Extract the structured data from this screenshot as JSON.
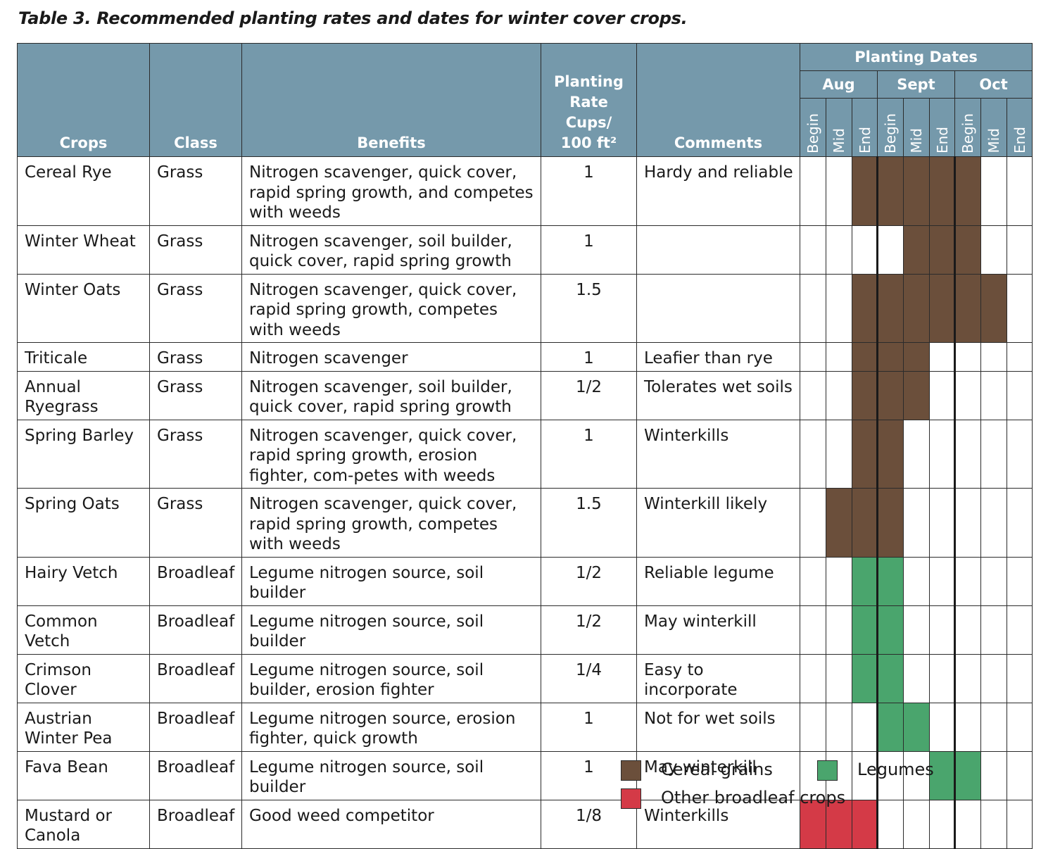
{
  "caption": "Table 3. Recommended planting rates and dates for winter cover crops.",
  "headers": {
    "crops": "Crops",
    "class": "Class",
    "benefits": "Benefits",
    "rate_lines": [
      "Planting",
      "Rate",
      "Cups/",
      "100 ft²"
    ],
    "comments": "Comments",
    "planting_dates": "Planting Dates",
    "months": [
      "Aug",
      "Sept",
      "Oct"
    ],
    "subperiods": [
      "Begin",
      "Mid",
      "End",
      "Begin",
      "Mid",
      "End",
      "Begin",
      "Mid",
      "End"
    ]
  },
  "rows": [
    {
      "crop": "Cereal Rye",
      "class": "Grass",
      "benefits": "Nitrogen scavenger, quick cover, rapid spring growth, and competes with weeds",
      "rate": "1",
      "comments": "Hardy and reliable",
      "periods": [
        "",
        "",
        "c",
        "c",
        "c",
        "c",
        "c",
        "",
        ""
      ],
      "height": 96
    },
    {
      "crop": "Winter Wheat",
      "class": "Grass",
      "benefits": "Nitrogen scavenger, soil builder, quick cover, rapid spring growth",
      "rate": "1",
      "comments": "",
      "periods": [
        "",
        "",
        "",
        "",
        "c",
        "c",
        "c",
        "",
        ""
      ],
      "height": 68
    },
    {
      "crop": "Winter Oats",
      "class": "Grass",
      "benefits": "Nitrogen scavenger, quick cover, rapid spring growth, competes with weeds",
      "rate": "1.5",
      "comments": "",
      "periods": [
        "",
        "",
        "c",
        "c",
        "c",
        "c",
        "c",
        "c",
        ""
      ],
      "height": 68
    },
    {
      "crop": "Triticale",
      "class": "Grass",
      "benefits": "Nitrogen scavenger",
      "rate": "1",
      "comments": "Leafier than rye",
      "periods": [
        "",
        "",
        "c",
        "c",
        "c",
        "",
        "",
        "",
        ""
      ],
      "height": 39
    },
    {
      "crop": "Annual Ryegrass",
      "class": "Grass",
      "benefits": "Nitrogen scavenger, soil builder, quick cover, rapid spring growth",
      "rate": "1/2",
      "comments": "Tolerates wet soils",
      "periods": [
        "",
        "",
        "c",
        "c",
        "c",
        "",
        "",
        "",
        ""
      ],
      "height": 68
    },
    {
      "crop": "Spring Barley",
      "class": "Grass",
      "benefits": "Nitrogen scavenger, quick cover, rapid spring growth, erosion fighter, com-petes with weeds",
      "rate": "1",
      "comments": "Winterkills",
      "periods": [
        "",
        "",
        "c",
        "c",
        "",
        "",
        "",
        "",
        ""
      ],
      "height": 96
    },
    {
      "crop": "Spring Oats",
      "class": "Grass",
      "benefits": "Nitrogen scavenger, quick cover, rapid spring growth, competes with weeds",
      "rate": "1.5",
      "comments": "Winterkill likely",
      "periods": [
        "",
        "c",
        "c",
        "c",
        "",
        "",
        "",
        "",
        ""
      ],
      "height": 68
    },
    {
      "crop": "Hairy Vetch",
      "class": "Broadleaf",
      "benefits": "Legume nitrogen source, soil builder",
      "rate": "1/2",
      "comments": "Reliable legume",
      "periods": [
        "",
        "",
        "l",
        "l",
        "",
        "",
        "",
        "",
        ""
      ],
      "height": 39
    },
    {
      "crop": "Common Vetch",
      "class": "Broadleaf",
      "benefits": "Legume nitrogen source, soil builder",
      "rate": "1/2",
      "comments": "May winterkill",
      "periods": [
        "",
        "",
        "l",
        "l",
        "",
        "",
        "",
        "",
        ""
      ],
      "height": 39
    },
    {
      "crop": "Crimson Clover",
      "class": "Broadleaf",
      "benefits": "Legume nitrogen source, soil builder, erosion fighter",
      "rate": "1/4",
      "comments": "Easy to incorporate",
      "periods": [
        "",
        "",
        "l",
        "l",
        "",
        "",
        "",
        "",
        ""
      ],
      "height": 68
    },
    {
      "crop": "Austrian Winter Pea",
      "class": "Broadleaf",
      "benefits": "Legume nitrogen source, erosion fighter, quick growth",
      "rate": "1",
      "comments": "Not for wet soils",
      "periods": [
        "",
        "",
        "",
        "l",
        "l",
        "",
        "",
        "",
        ""
      ],
      "height": 68
    },
    {
      "crop": "Fava Bean",
      "class": "Broadleaf",
      "benefits": "Legume nitrogen source, soil builder",
      "rate": "1",
      "comments": "May winterkill",
      "periods": [
        "",
        "",
        "",
        "",
        "",
        "l",
        "l",
        "",
        ""
      ],
      "height": 39
    },
    {
      "crop": "Mustard or Canola",
      "class": "Broadleaf",
      "benefits": "Good weed competitor",
      "rate": "1/8",
      "comments": "Winterkills",
      "periods": [
        "b",
        "b",
        "b",
        "",
        "",
        "",
        "",
        "",
        ""
      ],
      "height": 68
    }
  ],
  "legend": {
    "cereal": "Cereal grains",
    "legumes": "Legumes",
    "broadleaf": "Other broadleaf crops"
  },
  "colors": {
    "header_bg": "#7599ab",
    "cereal": "#6b4f3b",
    "legume": "#4aa56d",
    "broadleaf": "#d43a47"
  }
}
